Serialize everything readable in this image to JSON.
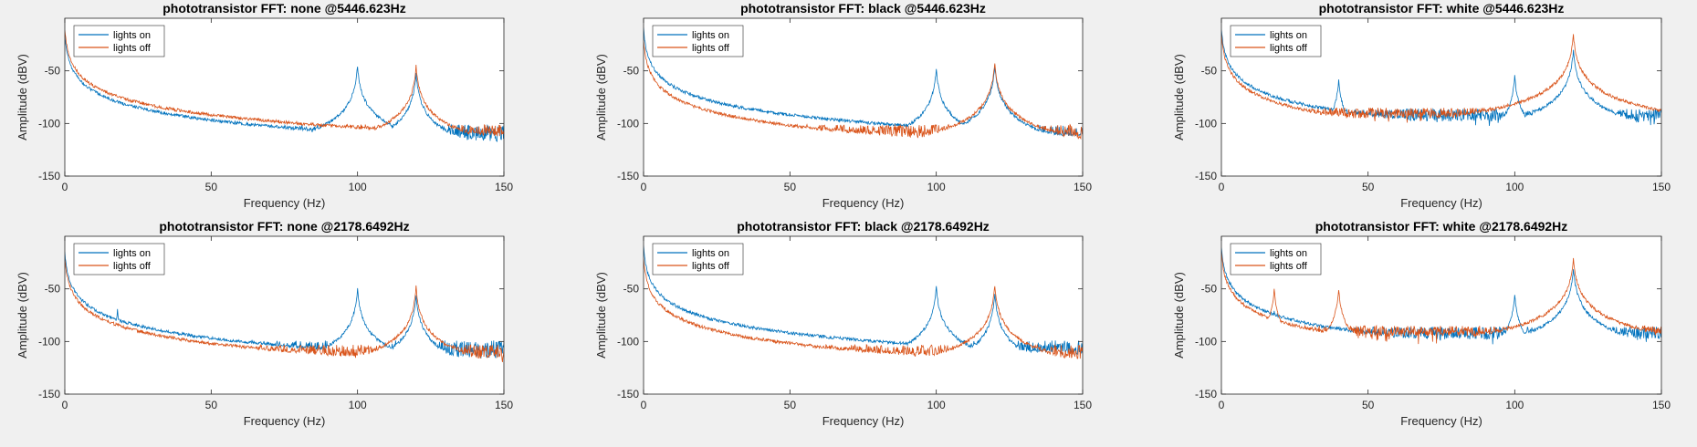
{
  "figure": {
    "colors": {
      "background": "#f0f0f0",
      "axes_bg": "#ffffff",
      "series_on": "#0072bd",
      "series_off": "#d95319"
    }
  },
  "chart_data": [
    {
      "type": "line",
      "title": "phototransistor FFT: none @5446.623Hz",
      "xlabel": "Frequency (Hz)",
      "ylabel": "Amplitude (dBV)",
      "xlim": [
        0,
        150
      ],
      "ylim": [
        -150,
        0
      ],
      "xticks": [
        0,
        50,
        100,
        150
      ],
      "yticks": [
        -150,
        -100,
        -50
      ],
      "legend": {
        "location": "top-left",
        "entries": [
          "lights on",
          "lights off"
        ]
      },
      "series": [
        {
          "name": "lights on",
          "color": "#0072bd",
          "floor": -110,
          "noise": 9,
          "peaks": [
            {
              "x": 0,
              "y": -15
            },
            {
              "x": 100,
              "y": -45
            },
            {
              "x": 120,
              "y": -52
            }
          ]
        },
        {
          "name": "lights off",
          "color": "#d95319",
          "floor": -108,
          "noise": 7,
          "peaks": [
            {
              "x": 0,
              "y": -10
            },
            {
              "x": 120,
              "y": -45
            }
          ]
        }
      ]
    },
    {
      "type": "line",
      "title": "phototransistor FFT: black @5446.623Hz",
      "xlabel": "Frequency (Hz)",
      "ylabel": "Amplitude (dBV)",
      "xlim": [
        0,
        150
      ],
      "ylim": [
        -150,
        0
      ],
      "xticks": [
        0,
        50,
        100,
        150
      ],
      "yticks": [
        -150,
        -100,
        -50
      ],
      "legend": {
        "location": "top-left",
        "entries": [
          "lights on",
          "lights off"
        ]
      },
      "series": [
        {
          "name": "lights on",
          "color": "#0072bd",
          "floor": -110,
          "noise": 9,
          "peaks": [
            {
              "x": 0,
              "y": -10
            },
            {
              "x": 100,
              "y": -48
            },
            {
              "x": 120,
              "y": -45
            }
          ]
        },
        {
          "name": "lights off",
          "color": "#d95319",
          "floor": -108,
          "noise": 7,
          "peaks": [
            {
              "x": 0,
              "y": -20
            },
            {
              "x": 120,
              "y": -42
            }
          ]
        }
      ]
    },
    {
      "type": "line",
      "title": "phototransistor FFT: white @5446.623Hz",
      "xlabel": "Frequency (Hz)",
      "ylabel": "Amplitude (dBV)",
      "xlim": [
        0,
        150
      ],
      "ylim": [
        -150,
        0
      ],
      "xticks": [
        0,
        50,
        100,
        150
      ],
      "yticks": [
        -150,
        -100,
        -50
      ],
      "legend": {
        "location": "top-left",
        "entries": [
          "lights on",
          "lights off"
        ]
      },
      "series": [
        {
          "name": "lights on",
          "color": "#0072bd",
          "floor": -92,
          "noise": 6,
          "peaks": [
            {
              "x": 0,
              "y": -10
            },
            {
              "x": 40,
              "y": -58
            },
            {
              "x": 100,
              "y": -55
            },
            {
              "x": 120,
              "y": -30
            }
          ]
        },
        {
          "name": "lights off",
          "color": "#d95319",
          "floor": -90,
          "noise": 5,
          "peaks": [
            {
              "x": 0,
              "y": -15
            },
            {
              "x": 120,
              "y": -15
            }
          ]
        }
      ]
    },
    {
      "type": "line",
      "title": "phototransistor FFT: none @2178.6492Hz",
      "xlabel": "Frequency (Hz)",
      "ylabel": "Amplitude (dBV)",
      "xlim": [
        0,
        150
      ],
      "ylim": [
        -150,
        0
      ],
      "xticks": [
        0,
        50,
        100,
        150
      ],
      "yticks": [
        -150,
        -100,
        -50
      ],
      "legend": {
        "location": "top-left",
        "entries": [
          "lights on",
          "lights off"
        ]
      },
      "series": [
        {
          "name": "lights on",
          "color": "#0072bd",
          "floor": -108,
          "noise": 9,
          "peaks": [
            {
              "x": 0,
              "y": -15
            },
            {
              "x": 18,
              "y": -70
            },
            {
              "x": 100,
              "y": -50
            },
            {
              "x": 120,
              "y": -55
            }
          ]
        },
        {
          "name": "lights off",
          "color": "#d95319",
          "floor": -110,
          "noise": 7,
          "peaks": [
            {
              "x": 0,
              "y": -20
            },
            {
              "x": 120,
              "y": -48
            }
          ]
        }
      ]
    },
    {
      "type": "line",
      "title": "phototransistor FFT: black @2178.6492Hz",
      "xlabel": "Frequency (Hz)",
      "ylabel": "Amplitude (dBV)",
      "xlim": [
        0,
        150
      ],
      "ylim": [
        -150,
        0
      ],
      "xticks": [
        0,
        50,
        100,
        150
      ],
      "yticks": [
        -150,
        -100,
        -50
      ],
      "legend": {
        "location": "top-left",
        "entries": [
          "lights on",
          "lights off"
        ]
      },
      "series": [
        {
          "name": "lights on",
          "color": "#0072bd",
          "floor": -108,
          "noise": 9,
          "peaks": [
            {
              "x": 0,
              "y": -10
            },
            {
              "x": 18,
              "y": -85
            },
            {
              "x": 100,
              "y": -48
            },
            {
              "x": 120,
              "y": -55
            }
          ]
        },
        {
          "name": "lights off",
          "color": "#d95319",
          "floor": -110,
          "noise": 7,
          "peaks": [
            {
              "x": 0,
              "y": -20
            },
            {
              "x": 120,
              "y": -46
            }
          ]
        }
      ]
    },
    {
      "type": "line",
      "title": "phototransistor FFT: white @2178.6492Hz",
      "xlabel": "Frequency (Hz)",
      "ylabel": "Amplitude (dBV)",
      "xlim": [
        0,
        150
      ],
      "ylim": [
        -150,
        0
      ],
      "xticks": [
        0,
        50,
        100,
        150
      ],
      "yticks": [
        -150,
        -100,
        -50
      ],
      "legend": {
        "location": "top-left",
        "entries": [
          "lights on",
          "lights off"
        ]
      },
      "series": [
        {
          "name": "lights on",
          "color": "#0072bd",
          "floor": -92,
          "noise": 6,
          "peaks": [
            {
              "x": 0,
              "y": -10
            },
            {
              "x": 18,
              "y": -70
            },
            {
              "x": 100,
              "y": -55
            },
            {
              "x": 120,
              "y": -30
            }
          ]
        },
        {
          "name": "lights off",
          "color": "#d95319",
          "floor": -90,
          "noise": 5,
          "peaks": [
            {
              "x": 0,
              "y": -15
            },
            {
              "x": 18,
              "y": -50
            },
            {
              "x": 40,
              "y": -50
            },
            {
              "x": 120,
              "y": -20
            }
          ]
        }
      ]
    }
  ]
}
